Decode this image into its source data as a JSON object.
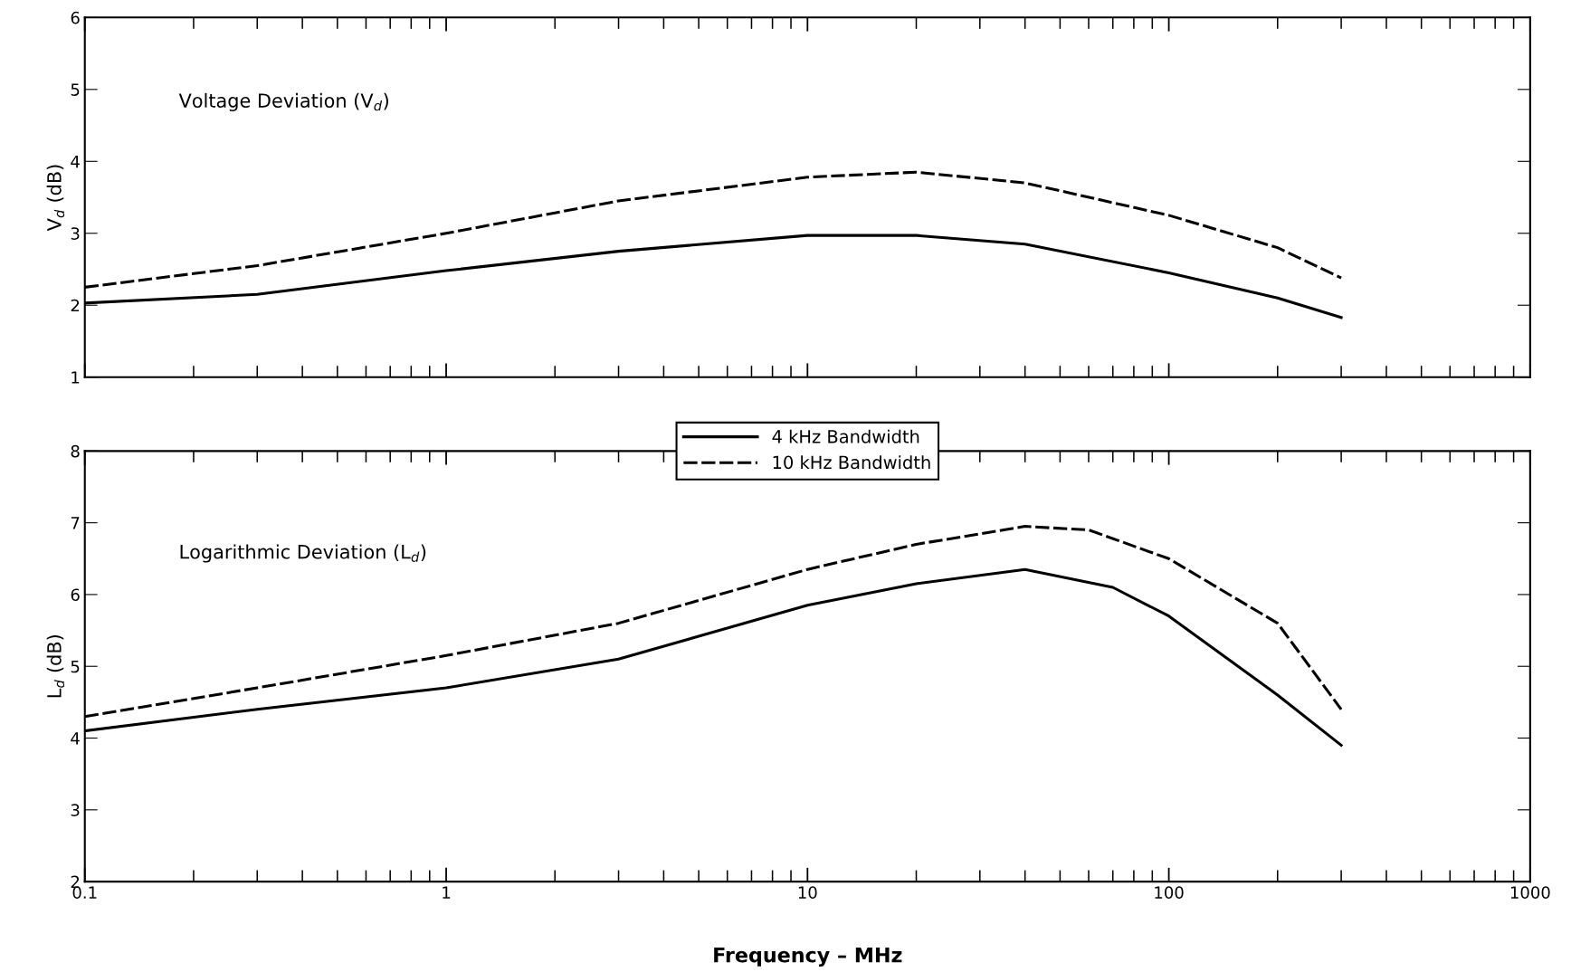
{
  "chart_data": [
    {
      "type": "line",
      "ylabel": "V$_{d}$ (dB)",
      "annotations": [
        "Voltage Deviation (V$_{d}$)"
      ],
      "log": "x",
      "xlim": [
        0.1,
        1000
      ],
      "xticks": [
        0.1,
        1,
        10,
        100,
        1000
      ],
      "ylim": [
        1,
        6
      ],
      "yticks": [
        1,
        2,
        3,
        4,
        5,
        6
      ],
      "tick_labels": "y",
      "grid": false,
      "legend": false,
      "series": [
        {
          "color": "#000000",
          "line_style": "solid",
          "x": [
            0.1,
            0.3,
            1,
            3,
            10,
            20,
            40,
            100,
            200,
            300
          ],
          "values": [
            2.03,
            2.15,
            2.48,
            2.75,
            2.97,
            2.97,
            2.85,
            2.45,
            2.1,
            1.83
          ]
        },
        {
          "color": "#000000",
          "line_style": "dashed",
          "x": [
            0.1,
            0.3,
            1,
            3,
            10,
            20,
            40,
            100,
            200,
            300
          ],
          "values": [
            2.25,
            2.55,
            3.0,
            3.45,
            3.78,
            3.85,
            3.7,
            3.25,
            2.8,
            2.38
          ]
        }
      ]
    },
    {
      "type": "line",
      "ylabel": "L$_{d}$ (dB)",
      "xlabel": "Frequency – MHz",
      "annotations": [
        "Logarithmic Deviation (L$_{d}$)"
      ],
      "log": "x",
      "xlim": [
        0.1,
        1000
      ],
      "xticks": [
        0.1,
        1,
        10,
        100,
        1000
      ],
      "ylim": [
        2,
        8
      ],
      "yticks": [
        2,
        3,
        4,
        5,
        6,
        7,
        8
      ],
      "grid": false,
      "legend": "top",
      "series": [
        {
          "name": "4 kHz Bandwidth",
          "color": "#000000",
          "line_style": "solid",
          "x": [
            0.1,
            0.3,
            1,
            3,
            10,
            20,
            40,
            70,
            100,
            200,
            300
          ],
          "values": [
            4.1,
            4.4,
            4.7,
            5.1,
            5.85,
            6.15,
            6.35,
            6.1,
            5.7,
            4.6,
            3.9
          ]
        },
        {
          "name": "10 kHz Bandwidth",
          "color": "#000000",
          "line_style": "dashed",
          "x": [
            0.1,
            0.3,
            1,
            3,
            10,
            20,
            40,
            60,
            100,
            200,
            300
          ],
          "values": [
            4.3,
            4.7,
            5.15,
            5.6,
            6.35,
            6.7,
            6.95,
            6.9,
            6.5,
            5.6,
            4.4
          ]
        }
      ]
    }
  ]
}
